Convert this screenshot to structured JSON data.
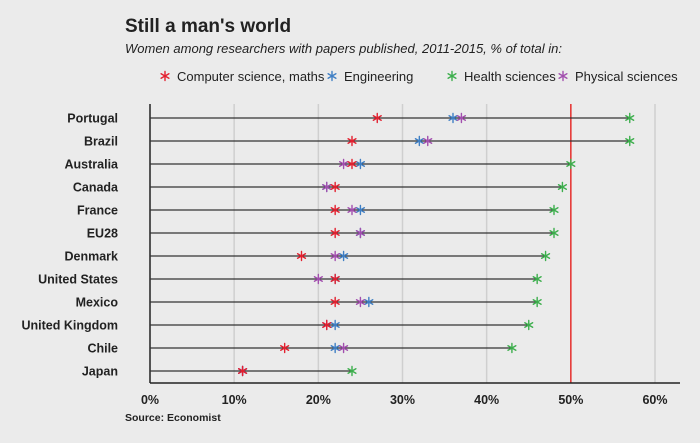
{
  "chart_data": {
    "type": "scatter",
    "title": "Still a man's world",
    "subtitle": "Women among researchers with papers published, 2011-2015, % of total in:",
    "source": "Source: Economist",
    "xlim": [
      0,
      60
    ],
    "xticks": [
      0,
      10,
      20,
      30,
      40,
      50,
      60
    ],
    "xtick_labels": [
      "0%",
      "10%",
      "20%",
      "30%",
      "40%",
      "50%",
      "60%"
    ],
    "reference_line": 50,
    "reference_color": "#e8312f",
    "grid": true,
    "legend_position": "top",
    "categories": [
      "Portugal",
      "Brazil",
      "Australia",
      "Canada",
      "France",
      "EU28",
      "Denmark",
      "United States",
      "Mexico",
      "United Kingdom",
      "Chile",
      "Japan"
    ],
    "series": [
      {
        "name": "Computer science, maths",
        "color": "#e3202f",
        "values": [
          27,
          24,
          24,
          22,
          22,
          22,
          18,
          22,
          22,
          21,
          16,
          11
        ]
      },
      {
        "name": "Engineering",
        "color": "#3f7fc4",
        "values": [
          36,
          32,
          25,
          21,
          25,
          25,
          23,
          22,
          26,
          22,
          22,
          11
        ]
      },
      {
        "name": "Health sciences",
        "color": "#3cae4c",
        "values": [
          57,
          57,
          50,
          49,
          48,
          48,
          47,
          46,
          46,
          45,
          43,
          24
        ]
      },
      {
        "name": "Physical sciences",
        "color": "#a24fae",
        "values": [
          37,
          33,
          23,
          21,
          24,
          25,
          22,
          20,
          25,
          21,
          23,
          11
        ]
      }
    ]
  }
}
